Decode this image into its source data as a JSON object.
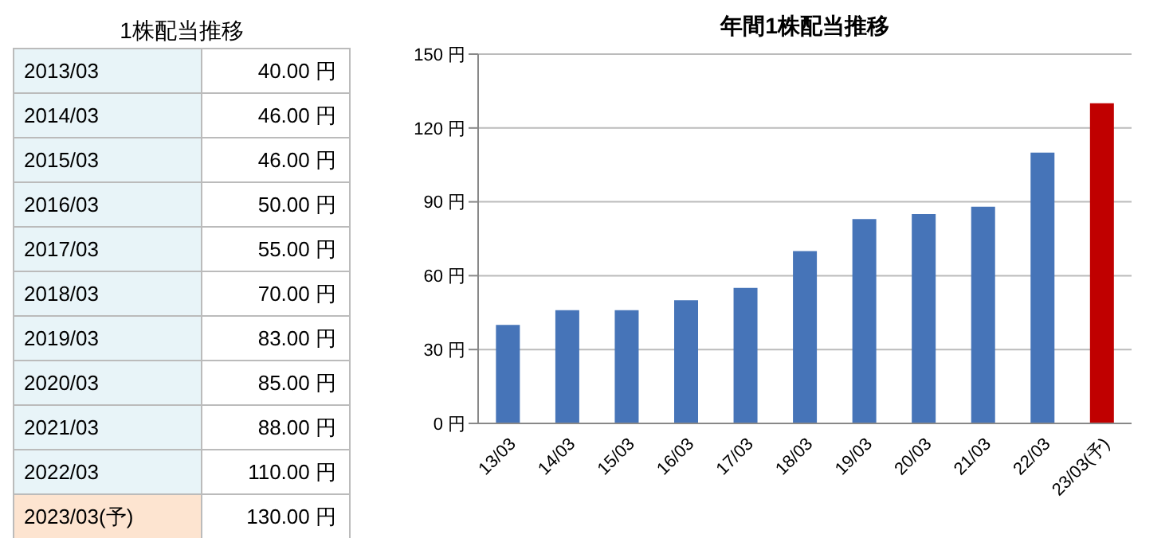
{
  "chart_data": [
    {
      "type": "other",
      "title": "1株配当推移",
      "categories": [
        "2013/03",
        "2014/03",
        "2015/03",
        "2016/03",
        "2017/03",
        "2018/03",
        "2019/03",
        "2020/03",
        "2021/03",
        "2022/03",
        "2023/03(予)"
      ],
      "value_labels": [
        "40.00 円",
        "46.00 円",
        "46.00 円",
        "50.00 円",
        "55.00 円",
        "70.00 円",
        "83.00 円",
        "85.00 円",
        "88.00 円",
        "110.00 円",
        "130.00 円"
      ],
      "colors": [
        "#e8f4f8",
        "#e8f4f8",
        "#e8f4f8",
        "#e8f4f8",
        "#e8f4f8",
        "#e8f4f8",
        "#e8f4f8",
        "#e8f4f8",
        "#e8f4f8",
        "#e8f4f8",
        "#fde4d0"
      ]
    },
    {
      "type": "bar",
      "title": "年間1株配当推移",
      "categories": [
        "13/03",
        "14/03",
        "15/03",
        "16/03",
        "17/03",
        "18/03",
        "19/03",
        "20/03",
        "21/03",
        "22/03",
        "23/03(予)"
      ],
      "values": [
        40,
        46,
        46,
        50,
        55,
        70,
        83,
        85,
        88,
        110,
        130
      ],
      "colors": [
        "#4674b8",
        "#4674b8",
        "#4674b8",
        "#4674b8",
        "#4674b8",
        "#4674b8",
        "#4674b8",
        "#4674b8",
        "#4674b8",
        "#4674b8",
        "#c00000"
      ],
      "ylim": [
        0,
        150
      ],
      "yticks": [
        {
          "value": 0,
          "label": "0 円"
        },
        {
          "value": 30,
          "label": "30 円"
        },
        {
          "value": 60,
          "label": "60 円"
        },
        {
          "value": 90,
          "label": "90 円"
        },
        {
          "value": 120,
          "label": "120 円"
        },
        {
          "value": 150,
          "label": "150 円"
        }
      ],
      "grid": "y",
      "legend": false
    }
  ]
}
